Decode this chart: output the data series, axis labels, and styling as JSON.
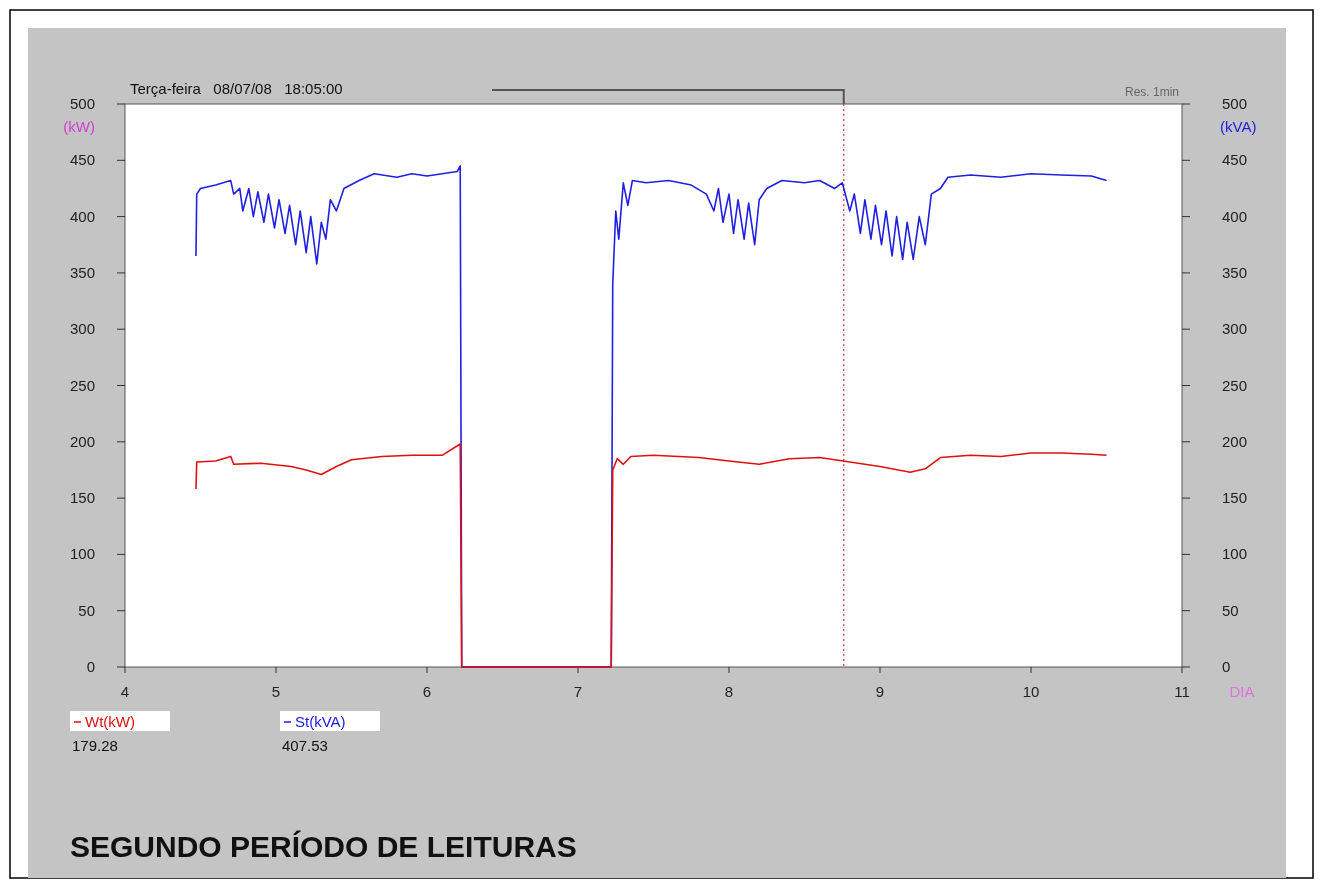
{
  "chart_data": {
    "type": "line",
    "title": "SEGUNDO PERÍODO DE LEITURAS",
    "xlabel": "DIA",
    "ylabel": "(kW)",
    "y2label": "(kVA)",
    "xlim": [
      4,
      11
    ],
    "xticks": [
      4,
      5,
      6,
      7,
      8,
      9,
      10,
      11
    ],
    "ylim": [
      0,
      500
    ],
    "yticks": [
      0,
      50,
      100,
      150,
      200,
      250,
      300,
      350,
      400,
      450,
      500
    ],
    "y2lim": [
      0,
      500
    ],
    "y2ticks": [
      0,
      50,
      100,
      150,
      200,
      250,
      300,
      350,
      400,
      450,
      500
    ],
    "legend": "bottom left",
    "grid": false,
    "line_style": "solid",
    "ref_lines": [
      {
        "axis": "x",
        "value": 8.76,
        "color": "#e03030",
        "line_style": "dotted"
      }
    ],
    "annotations": [
      "Terça-feira   08/07/08   18:05:00",
      "Res. 1min",
      "179.28",
      "407.53"
    ],
    "series": [
      {
        "name": "St(kVA)",
        "color": "#2020e0",
        "axis": "y2",
        "x": [
          4.47,
          4.475,
          4.5,
          4.6,
          4.7,
          4.72,
          4.76,
          4.78,
          4.82,
          4.85,
          4.88,
          4.92,
          4.95,
          4.99,
          5.02,
          5.06,
          5.09,
          5.13,
          5.16,
          5.2,
          5.23,
          5.27,
          5.3,
          5.33,
          5.36,
          5.4,
          5.45,
          5.55,
          5.65,
          5.8,
          5.9,
          6.0,
          6.1,
          6.2,
          6.22,
          6.23,
          7.22,
          7.23,
          7.25,
          7.27,
          7.3,
          7.33,
          7.36,
          7.45,
          7.6,
          7.75,
          7.85,
          7.9,
          7.93,
          7.96,
          8.0,
          8.03,
          8.06,
          8.1,
          8.13,
          8.17,
          8.2,
          8.25,
          8.35,
          8.5,
          8.6,
          8.7,
          8.75,
          8.8,
          8.83,
          8.87,
          8.9,
          8.94,
          8.97,
          9.01,
          9.04,
          9.08,
          9.11,
          9.15,
          9.18,
          9.22,
          9.26,
          9.3,
          9.34,
          9.4,
          9.45,
          9.6,
          9.8,
          10.0,
          10.2,
          10.4,
          10.5
        ],
        "values": [
          365,
          420,
          425,
          428,
          432,
          420,
          425,
          405,
          425,
          400,
          422,
          395,
          420,
          390,
          415,
          385,
          410,
          375,
          405,
          368,
          400,
          358,
          395,
          380,
          415,
          405,
          425,
          432,
          438,
          435,
          438,
          436,
          438,
          440,
          445,
          0,
          0,
          340,
          405,
          380,
          430,
          410,
          432,
          430,
          432,
          428,
          420,
          405,
          425,
          395,
          420,
          385,
          415,
          380,
          412,
          375,
          415,
          425,
          432,
          430,
          432,
          425,
          430,
          405,
          420,
          385,
          415,
          380,
          410,
          375,
          405,
          365,
          400,
          362,
          395,
          362,
          400,
          375,
          420,
          425,
          435,
          437,
          435,
          438,
          437,
          436,
          432
        ]
      },
      {
        "name": "Wt(kW)",
        "color": "#e01010",
        "x": [
          4.47,
          4.475,
          4.6,
          4.7,
          4.72,
          4.9,
          5.1,
          5.2,
          5.3,
          5.4,
          5.5,
          5.7,
          5.9,
          6.1,
          6.22,
          6.23,
          7.22,
          7.23,
          7.26,
          7.3,
          7.35,
          7.5,
          7.8,
          8.0,
          8.2,
          8.4,
          8.6,
          8.8,
          9.0,
          9.2,
          9.3,
          9.4,
          9.6,
          9.8,
          10.0,
          10.2,
          10.4,
          10.5
        ],
        "values": [
          158,
          182,
          183,
          187,
          180,
          181,
          178,
          175,
          171,
          178,
          184,
          187,
          188,
          188,
          198,
          0,
          0,
          175,
          185,
          180,
          187,
          188,
          186,
          183,
          180,
          185,
          186,
          182,
          178,
          173,
          176,
          186,
          188,
          187,
          190,
          190,
          189,
          188
        ]
      }
    ]
  }
}
